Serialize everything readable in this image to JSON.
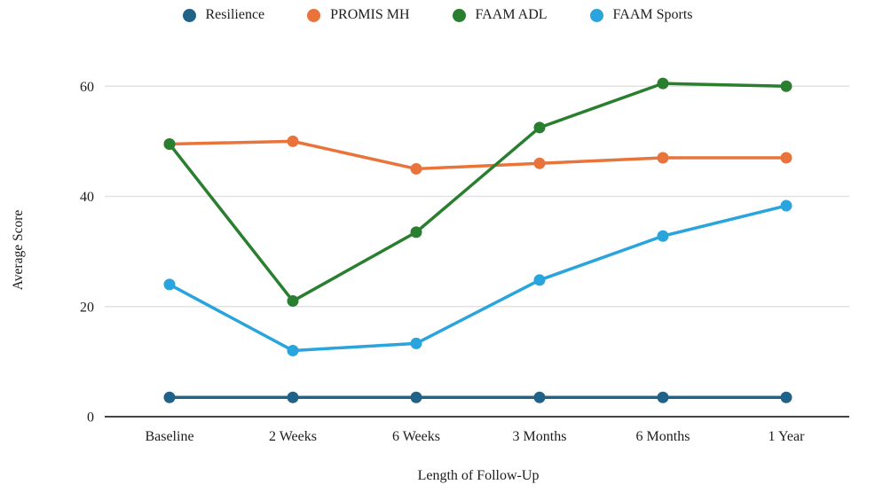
{
  "page": {
    "background": "#FFFFFF"
  },
  "chart_data": {
    "type": "line",
    "title": "",
    "xlabel": "Length of Follow-Up",
    "ylabel": "Average Score",
    "categories": [
      "Baseline",
      "2 Weeks",
      "6 Weeks",
      "3 Months",
      "6 Months",
      "1 Year"
    ],
    "yticks": [
      0,
      20,
      40,
      60
    ],
    "ylim": [
      0,
      66
    ],
    "grid": true,
    "legend_position": "top",
    "colors": {
      "gridline": "#E2E2E2",
      "axis_line": "#444444",
      "text": "#1C1C1C"
    },
    "series": [
      {
        "name": "Resilience",
        "color": "#206288",
        "values": [
          3.5,
          3.5,
          3.5,
          3.5,
          3.5,
          3.5
        ]
      },
      {
        "name": "PROMIS MH",
        "color": "#E8743B",
        "values": [
          49.5,
          50,
          45,
          46,
          47,
          47
        ]
      },
      {
        "name": "FAAM ADL",
        "color": "#2A7E2F",
        "values": [
          49.5,
          21,
          33.5,
          52.5,
          60.5,
          60
        ]
      },
      {
        "name": "FAAM Sports",
        "color": "#29A4DC",
        "values": [
          24,
          12,
          13.3,
          24.8,
          32.8,
          38.3
        ]
      }
    ]
  }
}
